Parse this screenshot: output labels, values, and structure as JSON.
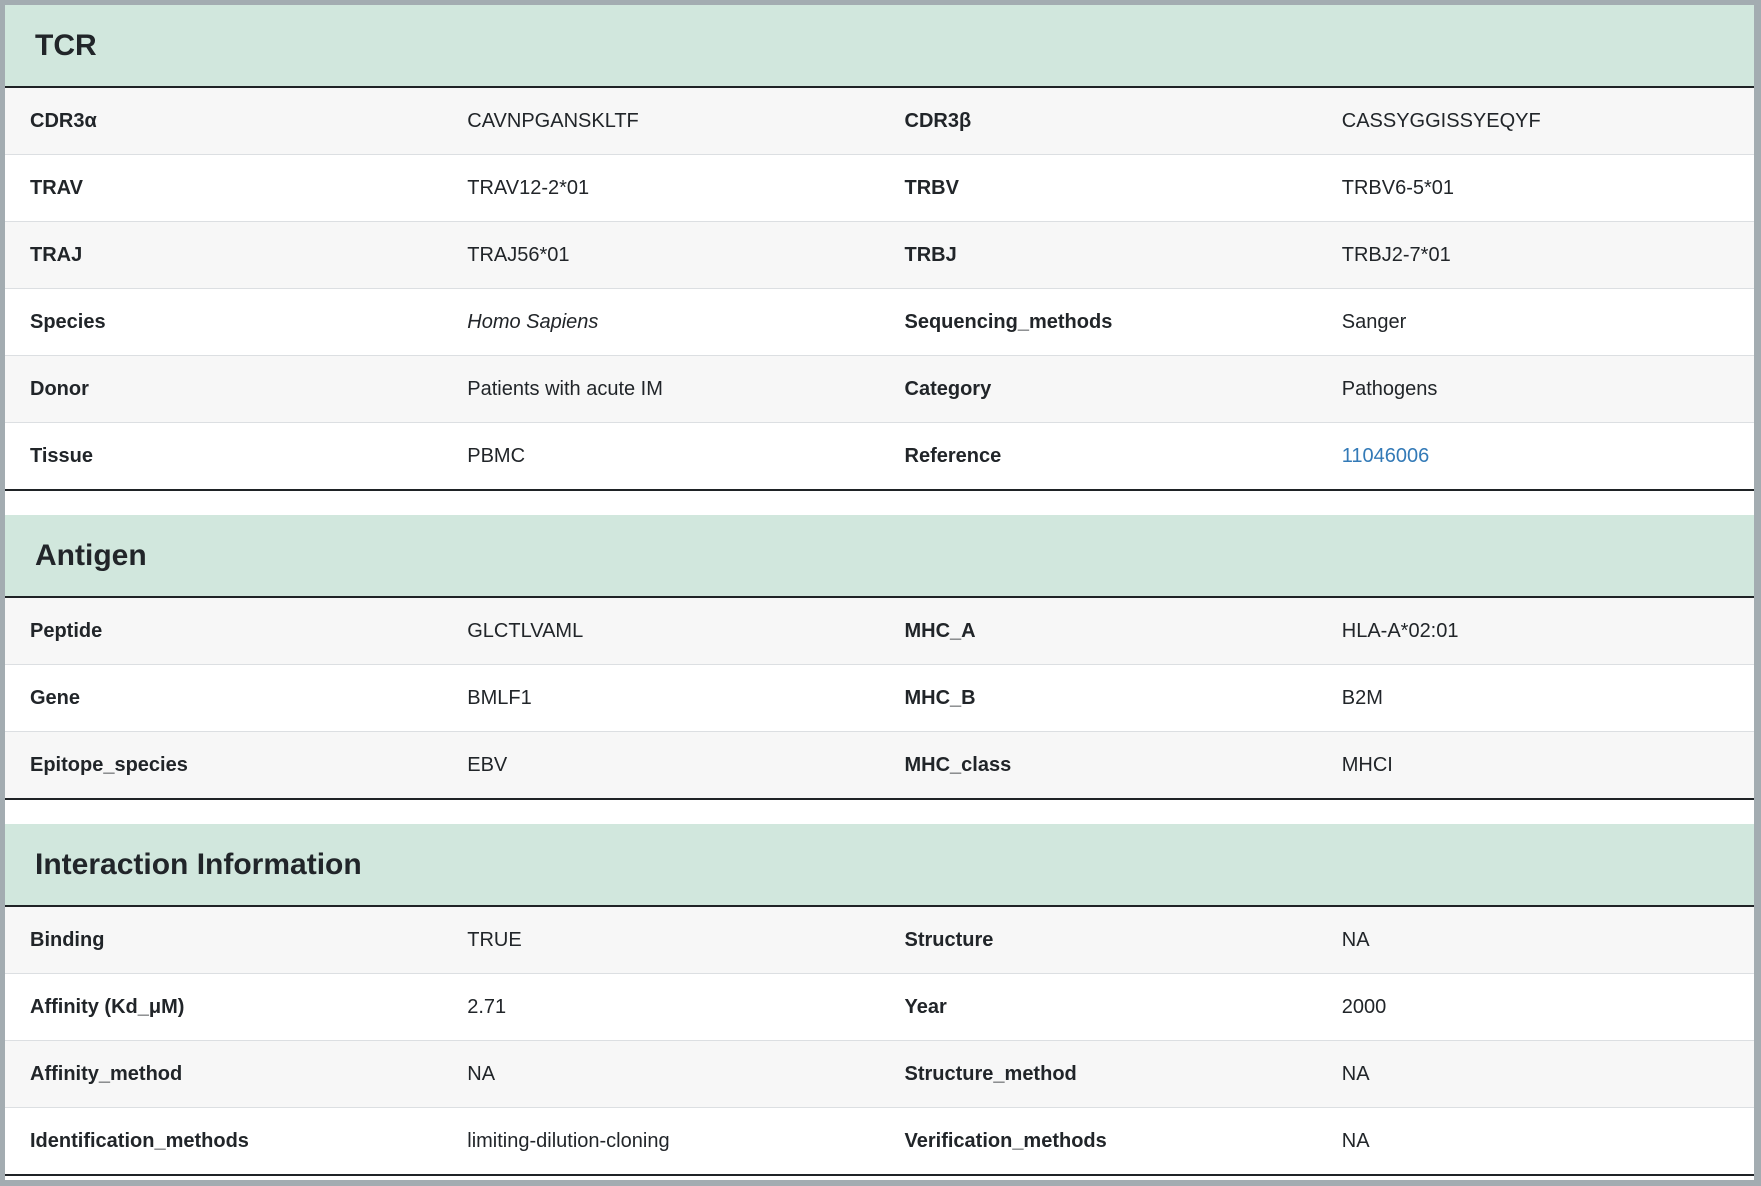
{
  "colors": {
    "section_header_bg": "#d1e7dd",
    "stripe_bg": "#f7f7f7",
    "row_divider": "#dcdfe2",
    "dark_divider": "#1f2326",
    "frame_border": "#a3acb1",
    "text": "#212529",
    "link": "#337ab7"
  },
  "sections": [
    {
      "title": "TCR",
      "rows": [
        {
          "cells": [
            {
              "label": "CDR3α",
              "value": "CAVNPGANSKLTF"
            },
            {
              "label": "CDR3β",
              "value": "CASSYGGISSYEQYF"
            }
          ]
        },
        {
          "cells": [
            {
              "label": "TRAV",
              "value": "TRAV12-2*01"
            },
            {
              "label": "TRBV",
              "value": "TRBV6-5*01"
            }
          ]
        },
        {
          "cells": [
            {
              "label": "TRAJ",
              "value": "TRAJ56*01"
            },
            {
              "label": "TRBJ",
              "value": "TRBJ2-7*01"
            }
          ]
        },
        {
          "cells": [
            {
              "label": "Species",
              "value": "Homo Sapiens",
              "italic": true
            },
            {
              "label": "Sequencing_methods",
              "value": "Sanger"
            }
          ]
        },
        {
          "cells": [
            {
              "label": "Donor",
              "value": "Patients with acute IM"
            },
            {
              "label": "Category",
              "value": "Pathogens"
            }
          ]
        },
        {
          "cells": [
            {
              "label": "Tissue",
              "value": "PBMC"
            },
            {
              "label": "Reference",
              "value": "11046006",
              "link": true
            }
          ]
        }
      ]
    },
    {
      "title": "Antigen",
      "rows": [
        {
          "cells": [
            {
              "label": "Peptide",
              "value": "GLCTLVAML"
            },
            {
              "label": "MHC_A",
              "value": "HLA-A*02:01"
            }
          ]
        },
        {
          "cells": [
            {
              "label": "Gene",
              "value": "BMLF1"
            },
            {
              "label": "MHC_B",
              "value": "B2M"
            }
          ]
        },
        {
          "cells": [
            {
              "label": "Epitope_species",
              "value": "EBV"
            },
            {
              "label": "MHC_class",
              "value": "MHCI"
            }
          ]
        }
      ]
    },
    {
      "title": "Interaction Information",
      "rows": [
        {
          "cells": [
            {
              "label": "Binding",
              "value": "TRUE"
            },
            {
              "label": "Structure",
              "value": "NA"
            }
          ]
        },
        {
          "cells": [
            {
              "label": "Affinity (Kd_μM)",
              "value": "2.71"
            },
            {
              "label": "Year",
              "value": "2000"
            }
          ]
        },
        {
          "cells": [
            {
              "label": "Affinity_method",
              "value": "NA"
            },
            {
              "label": "Structure_method",
              "value": "NA"
            }
          ]
        },
        {
          "cells": [
            {
              "label": "Identification_methods",
              "value": "limiting-dilution-cloning"
            },
            {
              "label": "Verification_methods",
              "value": "NA"
            }
          ]
        }
      ]
    }
  ]
}
